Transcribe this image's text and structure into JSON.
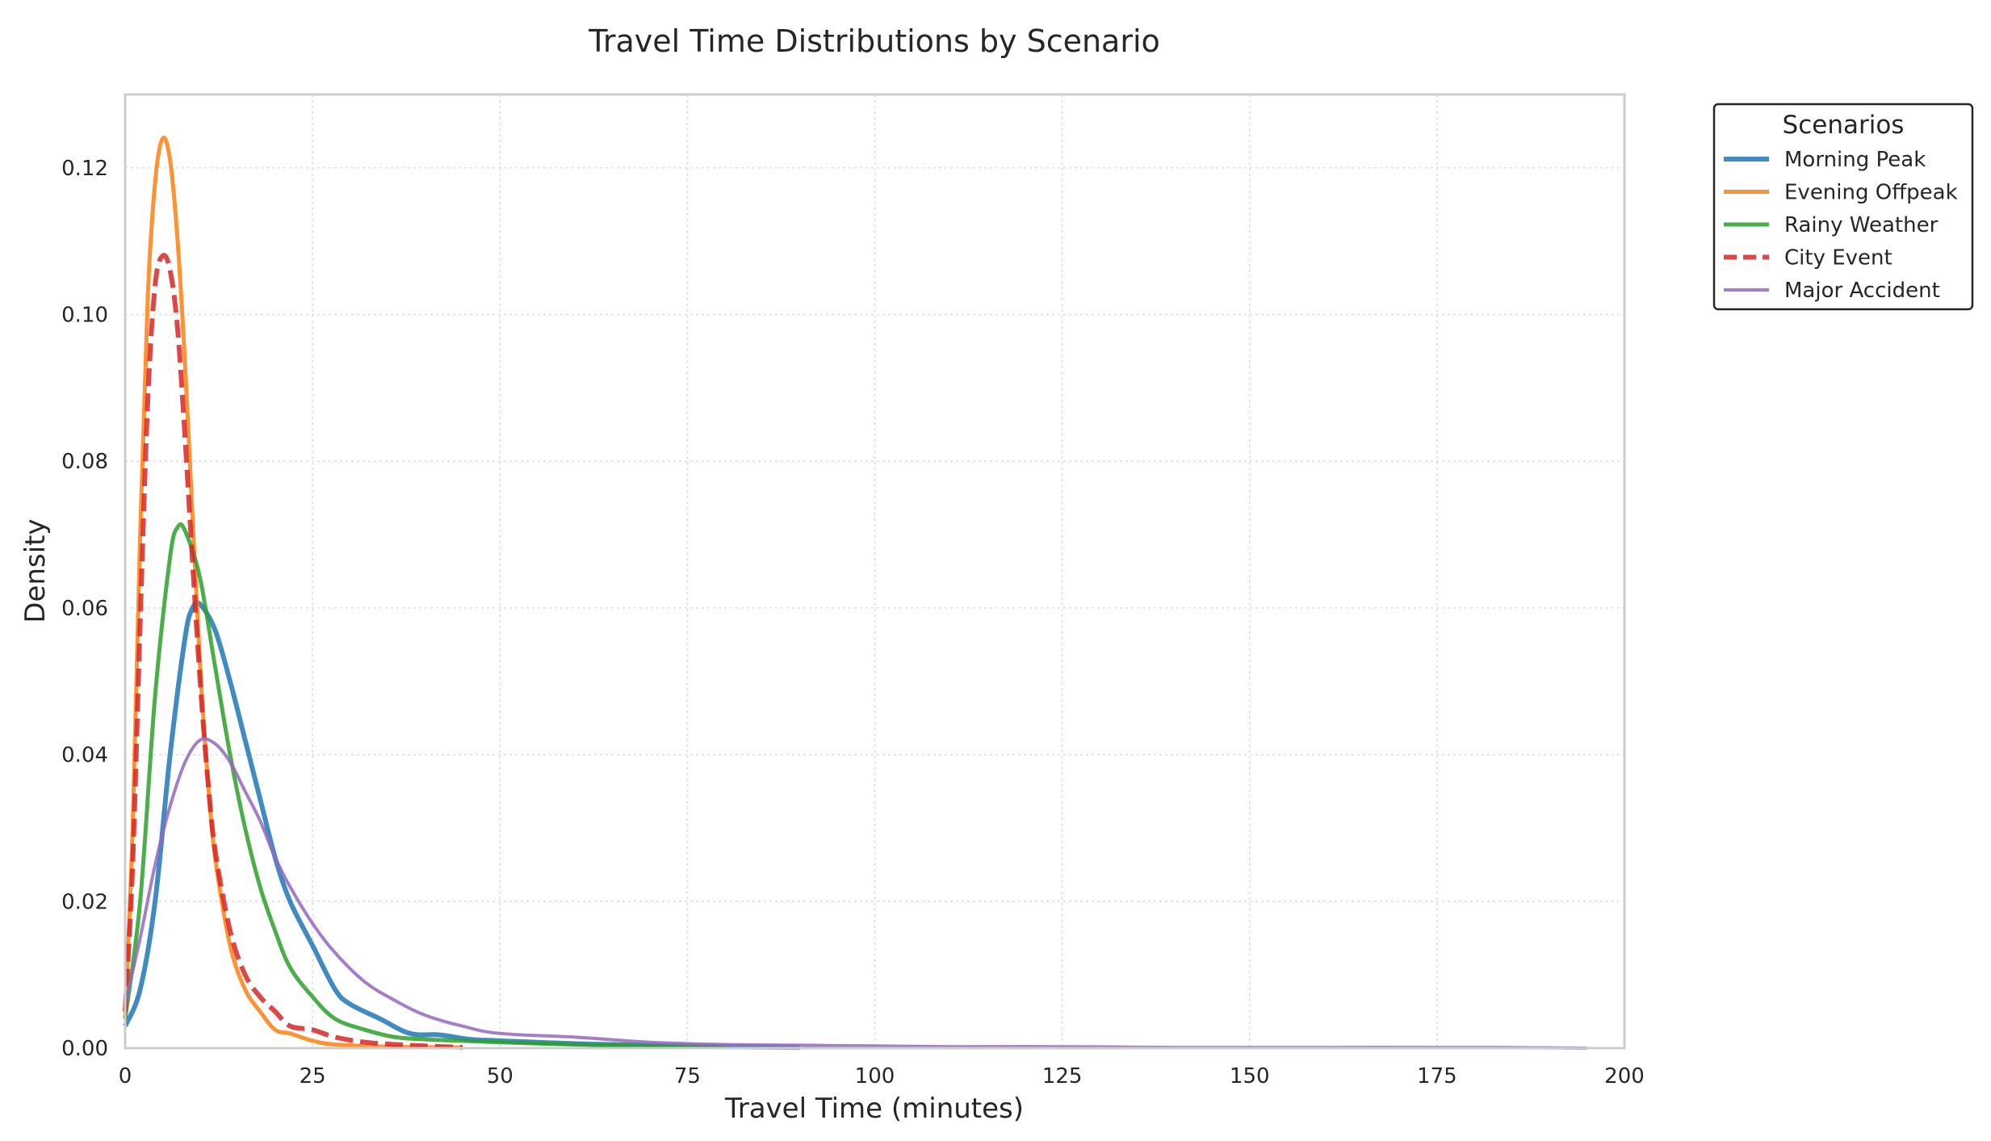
{
  "chart_data": {
    "type": "line",
    "title": "Travel Time Distributions by Scenario",
    "xlabel": "Travel Time (minutes)",
    "ylabel": "Density",
    "xlim": [
      0,
      200
    ],
    "ylim": [
      0,
      0.13
    ],
    "xticks": [
      0,
      25,
      50,
      75,
      100,
      125,
      150,
      175,
      200
    ],
    "xtick_labels": [
      "0",
      "25",
      "50",
      "75",
      "100",
      "125",
      "150",
      "175",
      "200"
    ],
    "yticks": [
      0,
      0.02,
      0.04,
      0.06,
      0.08,
      0.1,
      0.12
    ],
    "ytick_labels": [
      "0.00",
      "0.02",
      "0.04",
      "0.06",
      "0.08",
      "0.10",
      "0.12"
    ],
    "grid": true,
    "legend": {
      "title": "Scenarios",
      "position": "outside-top-right"
    },
    "series": [
      {
        "name": "Morning Peak",
        "color": "#1f77b4",
        "style": "solid",
        "points": [
          [
            0,
            0.003
          ],
          [
            2,
            0.008
          ],
          [
            4,
            0.02
          ],
          [
            6,
            0.04
          ],
          [
            8,
            0.056
          ],
          [
            9,
            0.06
          ],
          [
            10,
            0.0605
          ],
          [
            12,
            0.057
          ],
          [
            14,
            0.05
          ],
          [
            16,
            0.042
          ],
          [
            18,
            0.034
          ],
          [
            20,
            0.026
          ],
          [
            22,
            0.02
          ],
          [
            25,
            0.014
          ],
          [
            28,
            0.008
          ],
          [
            30,
            0.006
          ],
          [
            34,
            0.004
          ],
          [
            38,
            0.002
          ],
          [
            42,
            0.0018
          ],
          [
            46,
            0.0012
          ],
          [
            50,
            0.001
          ],
          [
            60,
            0.0006
          ],
          [
            70,
            0.0004
          ],
          [
            80,
            0.0002
          ],
          [
            90,
            0.0001
          ]
        ]
      },
      {
        "name": "Evening Offpeak",
        "color": "#ff7f0e",
        "style": "solid",
        "points": [
          [
            0,
            0.004
          ],
          [
            1,
            0.03
          ],
          [
            2,
            0.07
          ],
          [
            3,
            0.102
          ],
          [
            4,
            0.118
          ],
          [
            5,
            0.124
          ],
          [
            6,
            0.121
          ],
          [
            7,
            0.11
          ],
          [
            8,
            0.093
          ],
          [
            9,
            0.072
          ],
          [
            10,
            0.052
          ],
          [
            11,
            0.037
          ],
          [
            12,
            0.026
          ],
          [
            14,
            0.014
          ],
          [
            16,
            0.008
          ],
          [
            18,
            0.005
          ],
          [
            20,
            0.0025
          ],
          [
            22,
            0.002
          ],
          [
            25,
            0.001
          ],
          [
            28,
            0.0005
          ],
          [
            35,
            0.0002
          ],
          [
            45,
            0.0001
          ]
        ]
      },
      {
        "name": "Rainy Weather",
        "color": "#2ca02c",
        "style": "solid",
        "points": [
          [
            0,
            0.004
          ],
          [
            2,
            0.02
          ],
          [
            4,
            0.048
          ],
          [
            6,
            0.067
          ],
          [
            7,
            0.071
          ],
          [
            8,
            0.0705
          ],
          [
            10,
            0.064
          ],
          [
            12,
            0.052
          ],
          [
            14,
            0.04
          ],
          [
            16,
            0.03
          ],
          [
            18,
            0.022
          ],
          [
            20,
            0.016
          ],
          [
            22,
            0.011
          ],
          [
            25,
            0.007
          ],
          [
            28,
            0.004
          ],
          [
            32,
            0.0025
          ],
          [
            36,
            0.0015
          ],
          [
            40,
            0.0012
          ],
          [
            45,
            0.001
          ],
          [
            50,
            0.0008
          ],
          [
            60,
            0.0005
          ],
          [
            70,
            0.0003
          ],
          [
            80,
            0.0001
          ]
        ]
      },
      {
        "name": "City Event",
        "color": "#d62728",
        "style": "dashed",
        "points": [
          [
            0,
            0.005
          ],
          [
            1,
            0.025
          ],
          [
            2,
            0.058
          ],
          [
            3,
            0.088
          ],
          [
            4,
            0.104
          ],
          [
            5,
            0.108
          ],
          [
            6,
            0.106
          ],
          [
            7,
            0.098
          ],
          [
            8,
            0.083
          ],
          [
            9,
            0.066
          ],
          [
            10,
            0.05
          ],
          [
            11,
            0.037
          ],
          [
            12,
            0.027
          ],
          [
            14,
            0.016
          ],
          [
            16,
            0.01
          ],
          [
            18,
            0.007
          ],
          [
            20,
            0.005
          ],
          [
            22,
            0.003
          ],
          [
            25,
            0.0025
          ],
          [
            28,
            0.0015
          ],
          [
            32,
            0.0008
          ],
          [
            36,
            0.0005
          ],
          [
            40,
            0.0003
          ],
          [
            45,
            0.0001
          ]
        ]
      },
      {
        "name": "Major Accident",
        "color": "#9467bd",
        "style": "solid",
        "points": [
          [
            0,
            0.006
          ],
          [
            2,
            0.015
          ],
          [
            4,
            0.025
          ],
          [
            6,
            0.033
          ],
          [
            8,
            0.039
          ],
          [
            10,
            0.042
          ],
          [
            12,
            0.0415
          ],
          [
            14,
            0.039
          ],
          [
            16,
            0.035
          ],
          [
            18,
            0.031
          ],
          [
            20,
            0.026
          ],
          [
            22,
            0.022
          ],
          [
            25,
            0.017
          ],
          [
            28,
            0.013
          ],
          [
            32,
            0.009
          ],
          [
            36,
            0.0065
          ],
          [
            40,
            0.0045
          ],
          [
            45,
            0.003
          ],
          [
            50,
            0.002
          ],
          [
            60,
            0.0015
          ],
          [
            70,
            0.0008
          ],
          [
            80,
            0.0005
          ],
          [
            90,
            0.0004
          ],
          [
            100,
            0.0003
          ],
          [
            110,
            0.0002
          ],
          [
            125,
            0.0002
          ],
          [
            140,
            0.0001
          ],
          [
            160,
            0.0001
          ],
          [
            180,
            0.0001
          ],
          [
            195,
            0.0
          ]
        ]
      }
    ]
  }
}
